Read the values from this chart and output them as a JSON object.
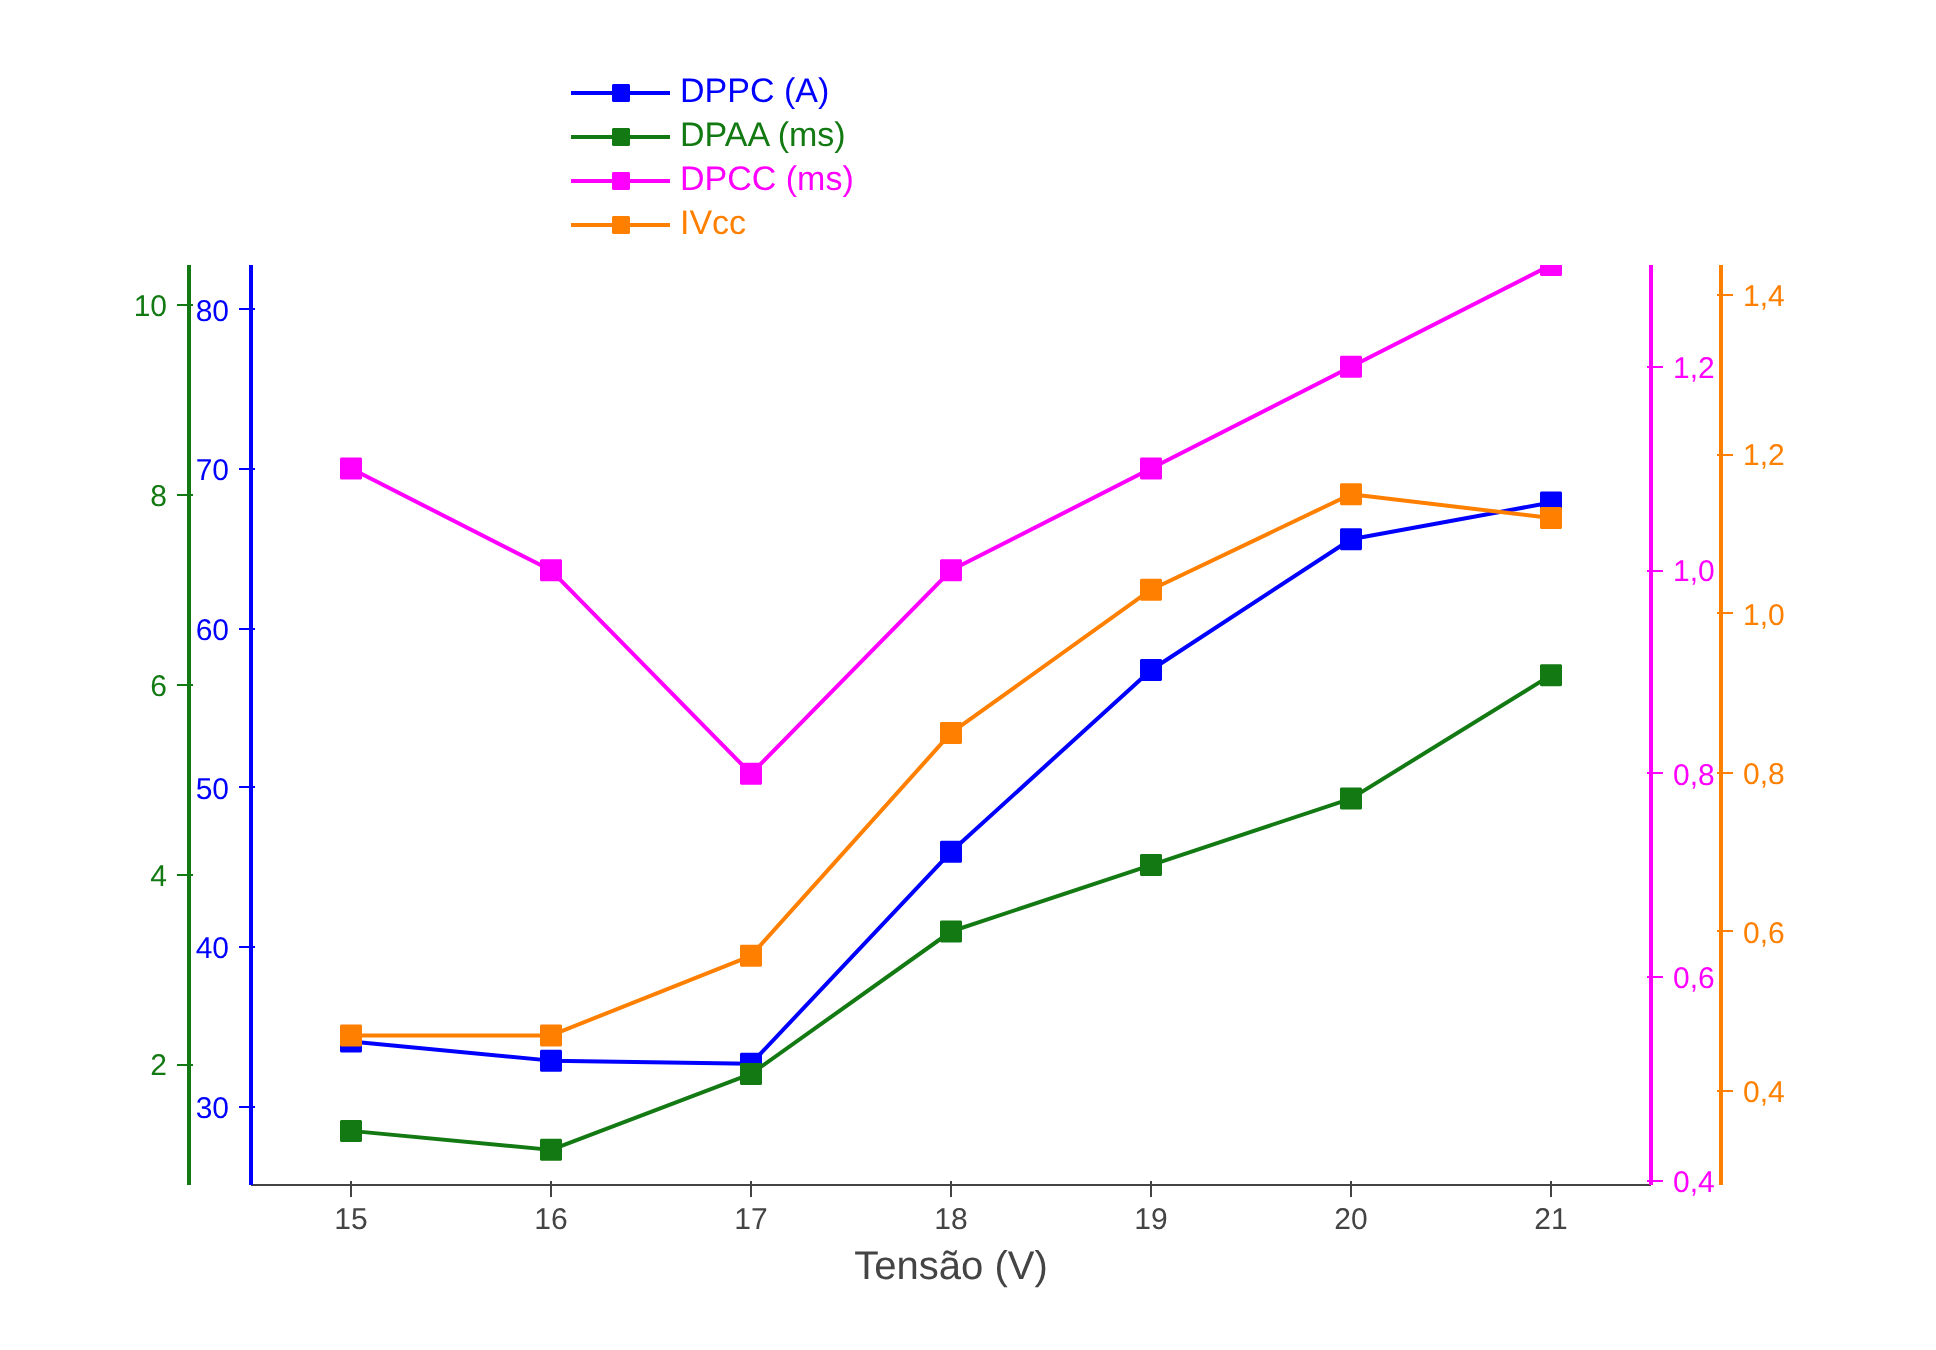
{
  "chart_data": [
    {
      "type": "line",
      "xlabel": "Tensão (V)",
      "x": [
        15,
        16,
        17,
        18,
        19,
        20,
        21
      ],
      "xlim": [
        14.5,
        21.5
      ],
      "xticks": [
        15,
        16,
        17,
        18,
        19,
        20,
        21
      ],
      "ylim": [
        25.1,
        82.8
      ],
      "yticks": [
        30,
        40,
        50,
        60,
        70,
        80
      ],
      "y2lim": [
        0.73,
        10.42
      ],
      "y2ticks": [
        2,
        4,
        6,
        8,
        10
      ],
      "series": [
        {
          "name": "DPPC (A)",
          "color": "#0000ff",
          "values": [
            34.1,
            32.9,
            32.7,
            46.0,
            57.4,
            65.6,
            67.9
          ]
        },
        {
          "name": "DPAA (ms)",
          "color": "#137a13",
          "axis": "y2",
          "values": [
            1.3,
            1.1,
            1.9,
            3.4,
            4.1,
            4.8,
            6.1
          ]
        }
      ],
      "marker": "square",
      "line_style": "solid",
      "legend": "top left"
    },
    {
      "type": "line",
      "x": [
        15,
        16,
        17,
        18,
        19,
        20,
        21
      ],
      "xlim": [
        14.5,
        21.5
      ],
      "tick_labels": "y",
      "ylim": [
        0.396,
        1.3
      ],
      "yticks": [
        {
          "value": 0.4,
          "label": "0,4"
        },
        {
          "value": 0.6,
          "label": "0,6"
        },
        {
          "value": 0.8,
          "label": "0,8"
        },
        {
          "value": 1.0,
          "label": "1,0"
        },
        {
          "value": 1.2,
          "label": "1,2"
        }
      ],
      "y2lim": [
        0.282,
        1.438
      ],
      "y2ticks": [
        {
          "value": 0.4,
          "label": "0,4"
        },
        {
          "value": 0.6,
          "label": "0,6"
        },
        {
          "value": 0.8,
          "label": "0,8"
        },
        {
          "value": 1.0,
          "label": "1,0"
        },
        {
          "value": 1.2,
          "label": "1,2"
        },
        {
          "value": 1.4,
          "label": "1,4"
        }
      ],
      "series": [
        {
          "name": "DPCC (ms)",
          "color": "#ff00ff",
          "values": [
            1.1,
            1.0,
            0.8,
            1.0,
            1.1,
            1.2,
            1.3
          ]
        },
        {
          "name": "IVcc",
          "color": "#ff8000",
          "axis": "y2",
          "values": [
            0.47,
            0.47,
            0.57,
            0.85,
            1.03,
            1.15,
            1.12
          ]
        }
      ],
      "marker": "square",
      "line_style": "solid",
      "legend": "top left"
    }
  ]
}
